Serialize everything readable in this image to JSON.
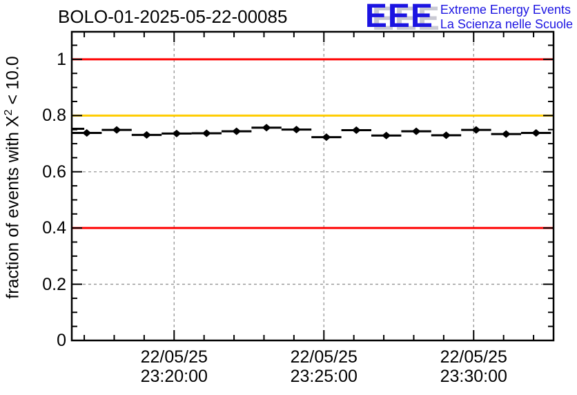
{
  "header": {
    "title": "BOLO-01-2025-05-22-00085"
  },
  "logo": {
    "acronym": "EEE",
    "line1": "Extreme Energy Events",
    "line2": "La Scienza nelle Scuole",
    "blue": "#1c14e2",
    "shadow_gray": "#c9c9d3"
  },
  "chart_data": {
    "type": "scatter",
    "title": "BOLO-01-2025-05-22-00085",
    "grid": true,
    "legend": "none",
    "frame_color": "#000000",
    "grid_color": "#969696",
    "marker_color": "#000000",
    "y_axis": {
      "label_prefix": "fraction of events with X",
      "label_sup": "2",
      "label_suffix": " < 10.0",
      "min": 0,
      "max": 1.098,
      "major_ticks": [
        {
          "v": 0,
          "label": "0"
        },
        {
          "v": 0.2,
          "label": "0.2"
        },
        {
          "v": 0.4,
          "label": "0.4"
        },
        {
          "v": 0.6,
          "label": "0.6"
        },
        {
          "v": 0.8,
          "label": "0.8"
        },
        {
          "v": 1.0,
          "label": "1"
        }
      ],
      "minor_step": 0.05
    },
    "x_axis": {
      "min": "23:16:35",
      "max": "23:32:40",
      "minor_step_s": 60,
      "major_ticks": [
        {
          "time": "23:20:00",
          "label_date": "22/05/25",
          "label_time": "23:20:00"
        },
        {
          "time": "23:25:00",
          "label_date": "22/05/25",
          "label_time": "23:25:00"
        },
        {
          "time": "23:30:00",
          "label_date": "22/05/25",
          "label_time": "23:30:00"
        }
      ]
    },
    "reference_lines": [
      {
        "y": 1.0,
        "color": "#ff0000"
      },
      {
        "y": 0.8,
        "color": "#ffcc00"
      },
      {
        "y": 0.4,
        "color": "#ff0000"
      }
    ],
    "grid_y_values": [
      0.2,
      0.4,
      0.6,
      0.8,
      1.0
    ],
    "bin_halfwidth_s": 30,
    "points": [
      {
        "t": "23:16:30",
        "y": 0.753
      },
      {
        "t": "23:17:05",
        "y": 0.738
      },
      {
        "t": "23:18:05",
        "y": 0.749
      },
      {
        "t": "23:19:05",
        "y": 0.731
      },
      {
        "t": "23:20:05",
        "y": 0.736
      },
      {
        "t": "23:21:05",
        "y": 0.737
      },
      {
        "t": "23:22:05",
        "y": 0.744
      },
      {
        "t": "23:23:05",
        "y": 0.757
      },
      {
        "t": "23:24:05",
        "y": 0.75
      },
      {
        "t": "23:25:05",
        "y": 0.723
      },
      {
        "t": "23:26:05",
        "y": 0.748
      },
      {
        "t": "23:27:05",
        "y": 0.729
      },
      {
        "t": "23:28:05",
        "y": 0.744
      },
      {
        "t": "23:29:05",
        "y": 0.73
      },
      {
        "t": "23:30:05",
        "y": 0.749
      },
      {
        "t": "23:31:05",
        "y": 0.734
      },
      {
        "t": "23:32:05",
        "y": 0.738
      }
    ]
  }
}
